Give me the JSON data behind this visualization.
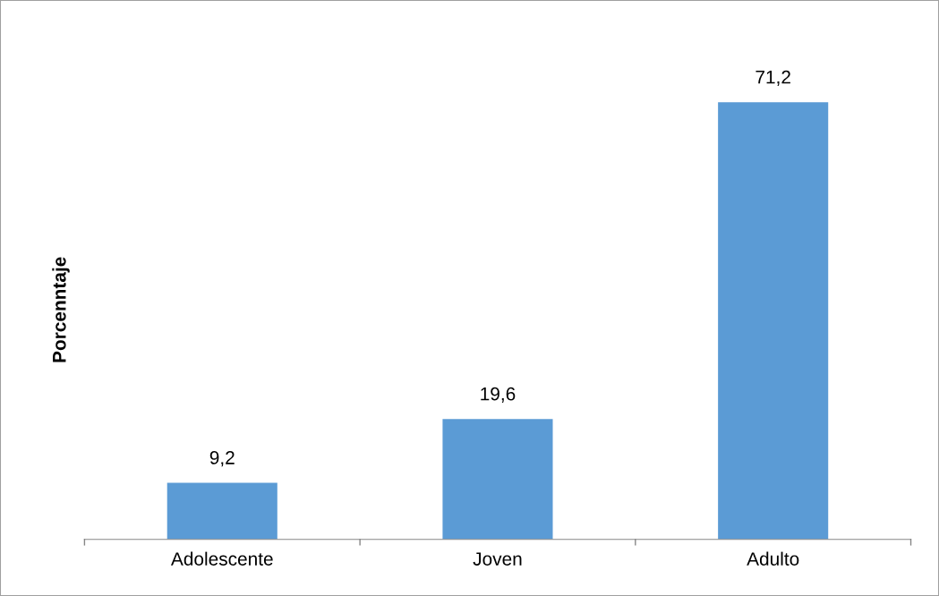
{
  "chart_data": {
    "type": "bar",
    "ylabel": "Porcenntaje",
    "categories": [
      "Adolescente",
      "Joven",
      "Adulto"
    ],
    "values": [
      9.2,
      19.6,
      71.2
    ],
    "value_labels": [
      "9,2",
      "19,6",
      "71,2"
    ],
    "color": "#5b9bd5",
    "grid": false,
    "legend": false,
    "tick_labels": "x"
  }
}
